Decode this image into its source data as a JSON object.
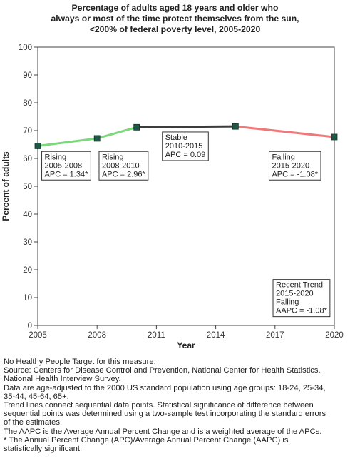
{
  "chart_data": {
    "type": "line",
    "title_lines": [
      "Percentage of adults aged 18 years and older who",
      "always or most of the time protect themselves from the sun,",
      "<200% of federal poverty level,  2005-2020"
    ],
    "xlabel": "Year",
    "ylabel": "Percent of adults",
    "xlim": [
      2005,
      2020
    ],
    "ylim": [
      0,
      100
    ],
    "x_ticks": [
      2005,
      2008,
      2011,
      2014,
      2017,
      2020
    ],
    "y_ticks": [
      0,
      10,
      20,
      30,
      40,
      50,
      60,
      70,
      80,
      90,
      100
    ],
    "grid": false,
    "points": [
      {
        "x": 2005,
        "y": 64.5
      },
      {
        "x": 2008,
        "y": 67.2
      },
      {
        "x": 2010,
        "y": 71.2
      },
      {
        "x": 2015,
        "y": 71.5
      },
      {
        "x": 2020,
        "y": 67.7
      }
    ],
    "segments": [
      {
        "from": 2005,
        "to": 2008,
        "trend": "rising",
        "color": "#7dd87b"
      },
      {
        "from": 2008,
        "to": 2010,
        "trend": "rising",
        "color": "#7dd87b"
      },
      {
        "from": 2010,
        "to": 2015,
        "trend": "stable",
        "color": "#3c3c3c"
      },
      {
        "from": 2015,
        "to": 2020,
        "trend": "falling",
        "color": "#f07878"
      }
    ],
    "marker_color": "#1f5a48",
    "annotations": [
      {
        "lines": [
          "Rising",
          "2005-2008",
          "APC =  1.34*"
        ],
        "anchor_x": 2005.2,
        "anchor_y": 62.5
      },
      {
        "lines": [
          "Rising",
          "2008-2010",
          "APC =  2.96*"
        ],
        "anchor_x": 2008.1,
        "anchor_y": 62.5
      },
      {
        "lines": [
          "Stable",
          "2010-2015",
          "APC =  0.09"
        ],
        "anchor_x": 2011.3,
        "anchor_y": 69.5
      },
      {
        "lines": [
          "Falling",
          "2015-2020",
          "APC = -1.08*"
        ],
        "anchor_x": 2016.7,
        "anchor_y": 62.5
      },
      {
        "lines": [
          "Recent Trend",
          "2015-2020",
          "Falling",
          "AAPC = -1.08*"
        ],
        "anchor_x": 2016.9,
        "anchor_y": 16.5
      }
    ]
  },
  "notes": [
    "No Healthy People Target for this measure.",
    "Source: Centers for Disease Control and Prevention, National Center for Health Statistics.",
    "National Health Interview Survey.",
    "Data are age-adjusted to the 2000 US standard population using age groups: 18-24, 25-34,",
    "35-44, 45-64, 65+.",
    "Trend lines connect sequential data points. Statistical significance of difference between",
    "sequential points was determined using a two-sample test incorporating the standard errors",
    "of the estimates.",
    "The AAPC is the Average Annual Percent Change and is a weighted average of the APCs.",
    "* The Annual Percent Change (APC)/Average Annual Percent Change (AAPC) is",
    "statistically significant."
  ]
}
